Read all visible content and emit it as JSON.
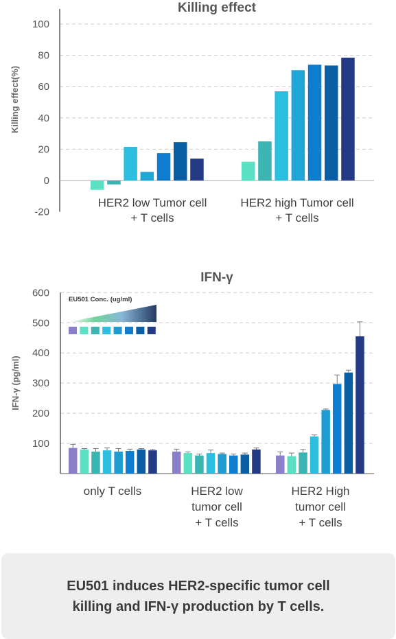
{
  "chart_data": [
    {
      "type": "bar",
      "title": "Killing effect",
      "ylabel": "Killing effect(%)",
      "ylim": [
        -20,
        100
      ],
      "yticks": [
        -20,
        0,
        20,
        40,
        60,
        80,
        100
      ],
      "grid": true,
      "categories": [
        [
          "HER2 low Tumor cell",
          "+ T cells"
        ],
        [
          "HER2 high Tumor cell",
          "+ T cells"
        ]
      ],
      "colors": [
        "#5ce0c4",
        "#3bb5b2",
        "#2bbede",
        "#1fa6d6",
        "#0f7dcf",
        "#0a5ea4",
        "#253a84"
      ],
      "groups": [
        [
          -6,
          -2.5,
          21.5,
          5.5,
          17.5,
          24.5,
          14
        ],
        [
          12,
          25,
          57,
          70.5,
          74,
          73.5,
          78.5
        ]
      ]
    },
    {
      "type": "bar",
      "title": "IFN-γ",
      "ylabel": "IFN-γ (pg/ml)",
      "ylim": [
        0,
        600
      ],
      "yticks": [
        100,
        200,
        300,
        400,
        500,
        600
      ],
      "grid": true,
      "legend": {
        "title": "EU501 Conc. (ug/ml)",
        "swatches": [
          "#8c7fc9",
          "#5ce0c4",
          "#3bb5b2",
          "#2bbede",
          "#1f9ccf",
          "#0f7dcf",
          "#0a5ea4",
          "#253a84"
        ]
      },
      "categories": [
        [
          "only T cells"
        ],
        [
          "HER2 low",
          "tumor cell",
          "+ T cells"
        ],
        [
          "HER2 High",
          "tumor cell",
          "+ T cells"
        ]
      ],
      "colors": [
        "#8c7fc9",
        "#5ce0c4",
        "#3bb5b2",
        "#2bbede",
        "#1f9ccf",
        "#0f7dcf",
        "#0a5ea4",
        "#253a84"
      ],
      "groups": [
        [
          85,
          80,
          73,
          77,
          73,
          75,
          80,
          77
        ],
        [
          73,
          68,
          60,
          68,
          65,
          60,
          63,
          80
        ],
        [
          60,
          58,
          70,
          123,
          211,
          297,
          335,
          455
        ]
      ],
      "errors": [
        [
          12,
          3,
          10,
          8,
          10,
          6,
          3,
          3
        ],
        [
          8,
          4,
          5,
          10,
          3,
          5,
          5,
          5
        ],
        [
          12,
          10,
          10,
          5,
          3,
          30,
          8,
          48
        ]
      ]
    }
  ],
  "caption": {
    "line1": "EU501 induces HER2-specific tumor cell",
    "line2": "killing and IFN-γ production by T cells."
  }
}
